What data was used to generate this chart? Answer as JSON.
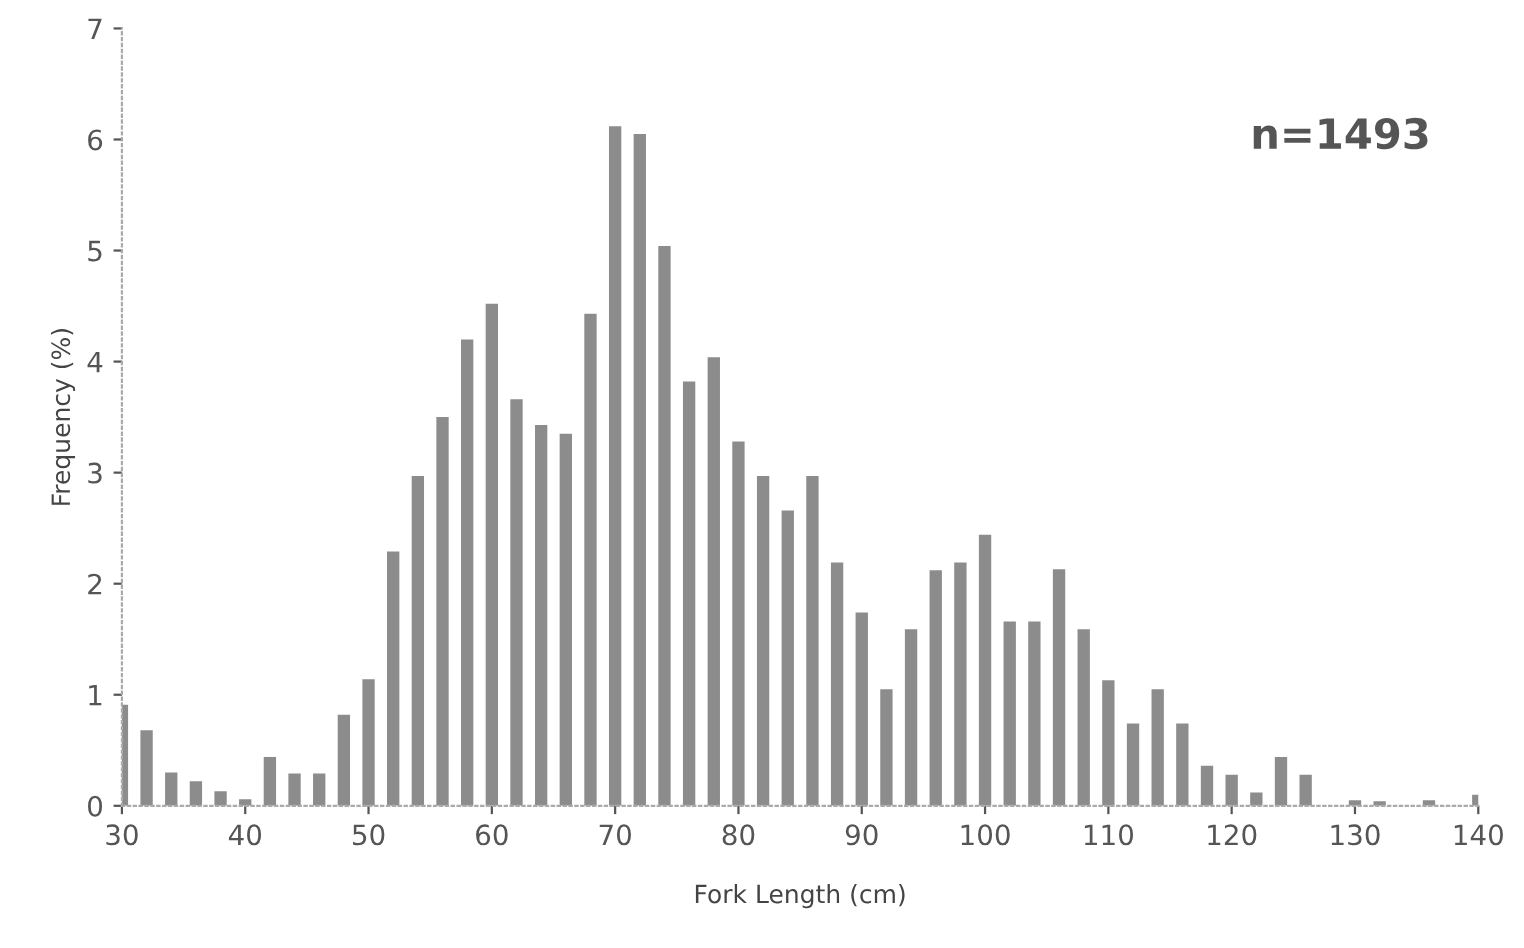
{
  "chart_data": {
    "type": "bar",
    "xlabel": "Fork Length (cm)",
    "ylabel": "Frequency (%)",
    "annotations": [
      "n=1493"
    ],
    "x": [
      30,
      32,
      34,
      36,
      38,
      40,
      42,
      44,
      46,
      48,
      50,
      52,
      54,
      56,
      58,
      60,
      62,
      64,
      66,
      68,
      70,
      72,
      74,
      76,
      78,
      80,
      82,
      84,
      86,
      88,
      90,
      92,
      94,
      96,
      98,
      100,
      102,
      104,
      106,
      108,
      110,
      112,
      114,
      116,
      118,
      120,
      122,
      124,
      126,
      128,
      130,
      132,
      134,
      136,
      138,
      140
    ],
    "values": [
      0.91,
      0.68,
      0.3,
      0.22,
      0.13,
      0.06,
      0.44,
      0.29,
      0.29,
      0.82,
      1.14,
      2.29,
      2.97,
      3.5,
      4.2,
      4.52,
      3.66,
      3.43,
      3.35,
      4.43,
      6.12,
      6.05,
      5.04,
      3.82,
      4.04,
      3.28,
      2.97,
      2.66,
      2.97,
      2.19,
      1.74,
      1.05,
      1.59,
      2.12,
      2.19,
      2.44,
      1.66,
      1.66,
      2.13,
      1.59,
      1.13,
      0.74,
      1.05,
      0.74,
      0.36,
      0.28,
      0.12,
      0.44,
      0.28,
      0,
      0.05,
      0.04,
      0,
      0.05,
      0,
      0.1
    ],
    "color": "#8c8c8c",
    "xlim": [
      30,
      140
    ],
    "xticks": [
      30,
      40,
      50,
      60,
      70,
      80,
      90,
      100,
      110,
      120,
      130,
      140
    ],
    "ylim": [
      0,
      7
    ],
    "yticks": [
      0,
      1,
      2,
      3,
      4,
      5,
      6,
      7
    ],
    "grid": false,
    "legend": false
  }
}
